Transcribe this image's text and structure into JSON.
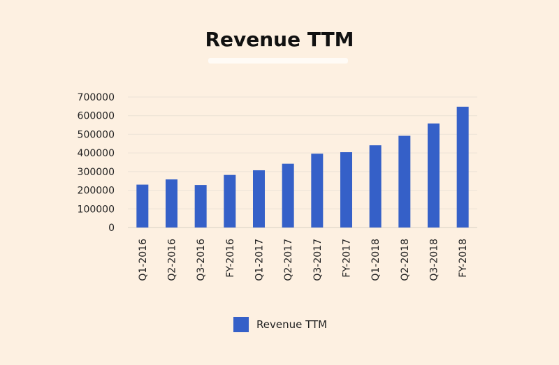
{
  "chart_data": {
    "type": "bar",
    "title": "Revenue TTM",
    "categories": [
      "Q1-2016",
      "Q2-2016",
      "Q3-2016",
      "FY-2016",
      "Q1-2017",
      "Q2-2017",
      "Q3-2017",
      "FY-2017",
      "Q1-2018",
      "Q2-2018",
      "Q3-2018",
      "FY-2018"
    ],
    "series": [
      {
        "name": "Revenue TTM",
        "color": "#3560c8",
        "values": [
          230000,
          258000,
          228000,
          282000,
          307000,
          342000,
          396000,
          404000,
          441000,
          492000,
          558000,
          648000
        ]
      }
    ],
    "ylim": [
      0,
      700000
    ],
    "yticks": [
      0,
      100000,
      200000,
      300000,
      400000,
      500000,
      600000,
      700000
    ],
    "grid": true,
    "legend_position": "bottom"
  }
}
